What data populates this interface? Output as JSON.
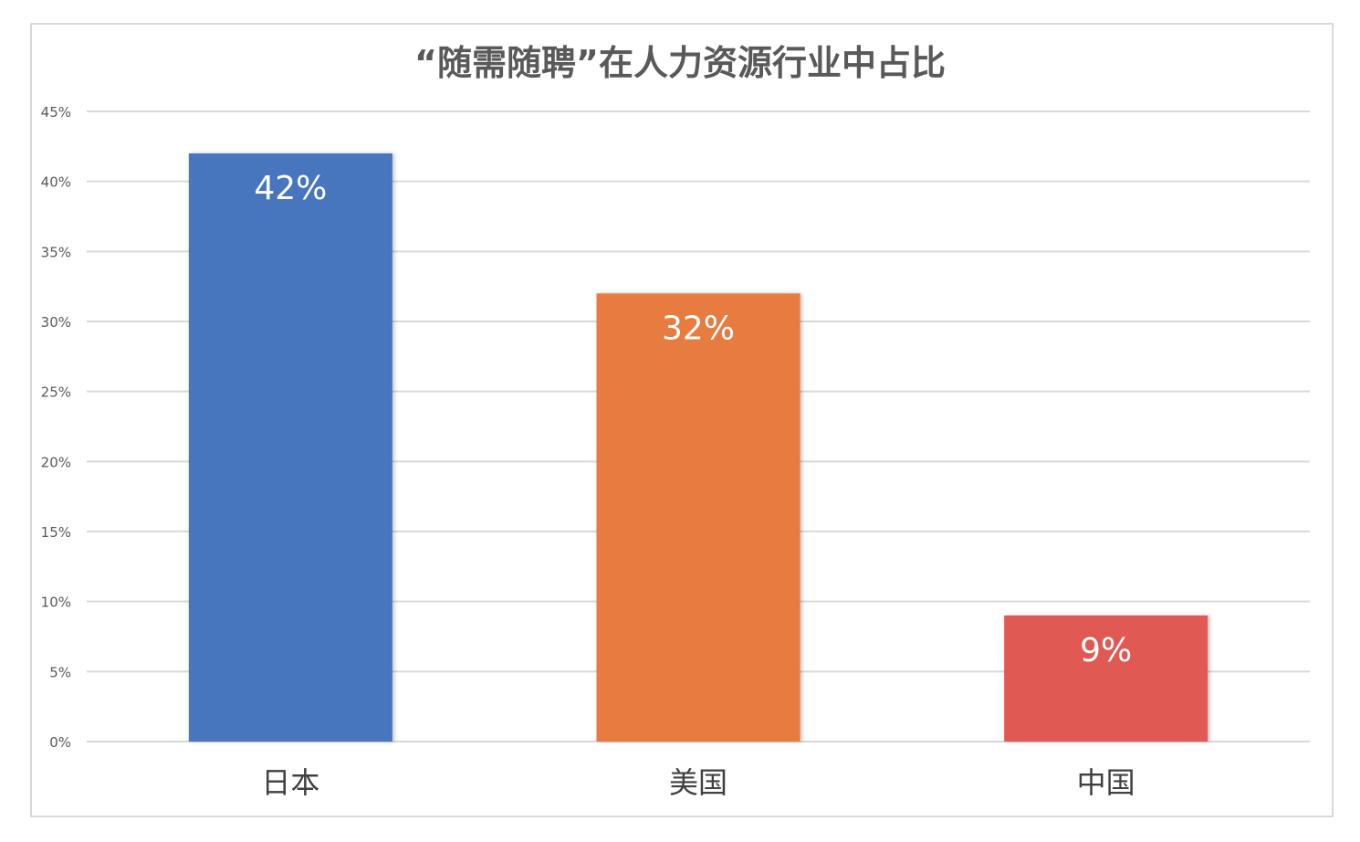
{
  "chart_data": {
    "type": "bar",
    "title": "“随需随聘”在人力资源行业中占比",
    "categories": [
      "日本",
      "美国",
      "中国"
    ],
    "values": [
      42,
      32,
      9
    ],
    "data_labels": [
      "42%",
      "32%",
      "9%"
    ],
    "unit": "%",
    "colors": [
      "#4674BE",
      "#E67B41",
      "#E05A52"
    ],
    "ylim": [
      0,
      45
    ],
    "yticks": [
      0,
      5,
      10,
      15,
      20,
      25,
      30,
      35,
      40,
      45
    ],
    "ytick_labels": [
      "0%",
      "5%",
      "10%",
      "15%",
      "20%",
      "25%",
      "30%",
      "35%",
      "40%",
      "45%"
    ],
    "grid": true,
    "legend": "none",
    "xlabel": "",
    "ylabel": ""
  }
}
